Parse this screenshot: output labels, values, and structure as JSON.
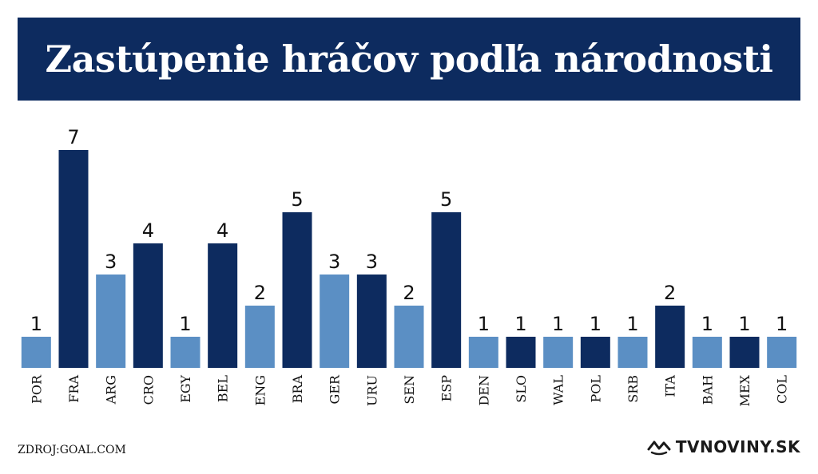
{
  "title": "Zastúpenie hráčov podľa národnosti",
  "source": "ZDROJ:GOAL.COM",
  "brand": "TVNOVINY.SK",
  "colors": {
    "dark": "#0d2b5f",
    "light": "#5b8fc4",
    "title_bg": "#0d2b5f"
  },
  "chart_data": {
    "type": "bar",
    "categories": [
      "POR",
      "FRA",
      "ARG",
      "CRO",
      "EGY",
      "BEL",
      "ENG",
      "BRA",
      "GER",
      "URU",
      "SEN",
      "ESP",
      "DEN",
      "SLO",
      "WAL",
      "POL",
      "SRB",
      "ITA",
      "BAH",
      "MEX",
      "COL"
    ],
    "values": [
      1,
      7,
      3,
      4,
      1,
      4,
      2,
      5,
      3,
      3,
      2,
      5,
      1,
      1,
      1,
      1,
      1,
      2,
      1,
      1,
      1
    ],
    "bar_colors": [
      "light",
      "dark",
      "light",
      "dark",
      "light",
      "dark",
      "light",
      "dark",
      "light",
      "dark",
      "light",
      "dark",
      "light",
      "dark",
      "light",
      "dark",
      "light",
      "dark",
      "light",
      "dark",
      "light"
    ],
    "ylim": [
      0,
      7
    ],
    "grid": false,
    "data_labels": true
  }
}
